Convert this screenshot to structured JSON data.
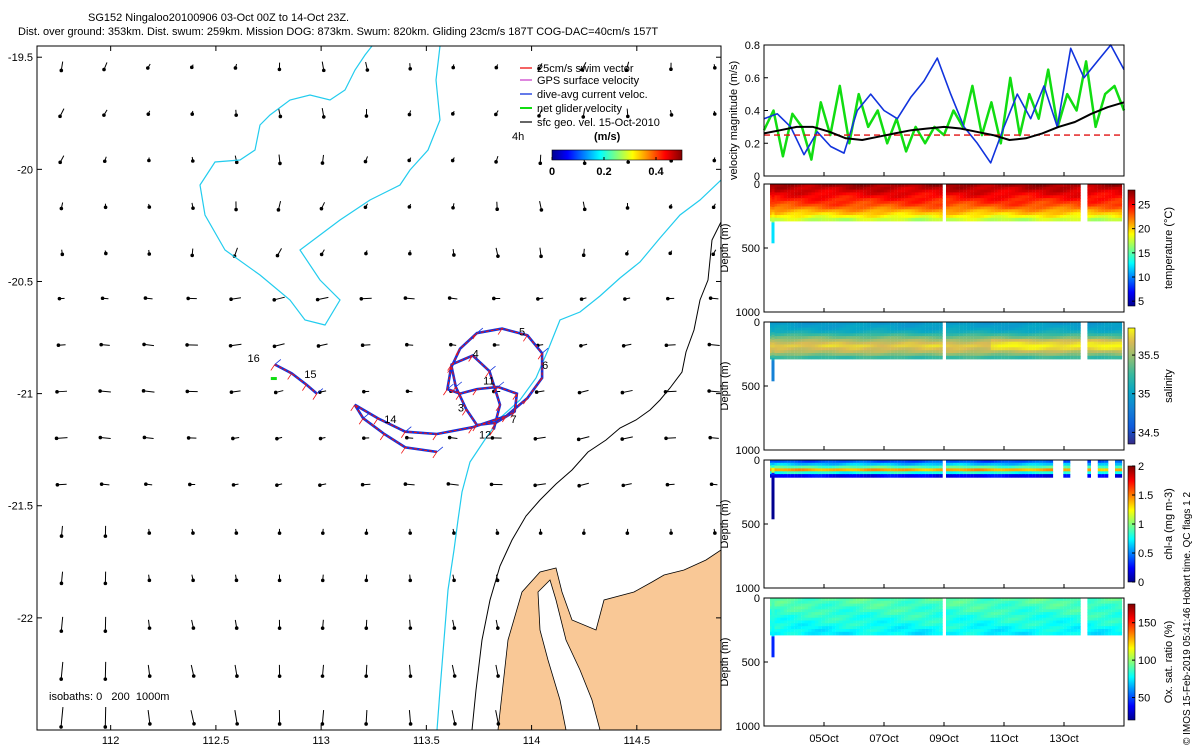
{
  "header": {
    "line1": "SG152 Ningaloo20100906 03-Oct 00Z to 14-Oct 23Z.",
    "line2": "Dist. over ground: 353km. Dist. swum: 259km. Mission DOG: 873km. Swum: 820km. Gliding 23cm/s 187T COG-DAC=40cm/s 157T"
  },
  "colors": {
    "land": "#f9c896",
    "isobath200": "#22ccee",
    "swim": "#ee1111",
    "gps": "#cc44cc",
    "dac": "#1133dd",
    "net": "#11dd11",
    "sfc": "#000000"
  },
  "chart_data": [
    {
      "type": "map",
      "name": "track-map",
      "xlabel": "",
      "ylabel": "",
      "xlim": [
        111.65,
        114.9
      ],
      "ylim": [
        -22.5,
        -19.45
      ],
      "xticks": [
        112,
        112.5,
        113,
        113.5,
        114,
        114.5
      ],
      "xtick_labels": [
        "112",
        "112.5",
        "113",
        "113.5",
        "114",
        "114.5"
      ],
      "yticks": [
        -19.5,
        -20,
        -20.5,
        -21,
        -21.5,
        -22
      ],
      "ytick_labels": [
        "-19.5",
        "-20",
        "-20.5",
        "-21",
        "-21.5",
        "-22"
      ],
      "legend": [
        "25cm/s swim vector",
        "GPS surface velocity",
        "dive-avg current veloc.",
        "net glider velocity",
        "sfc geo. vel. 15-Oct-2010"
      ],
      "legend_extra": "4h",
      "colorbar": {
        "label": "(m/s)",
        "ticks": [
          0,
          0.2,
          0.4
        ],
        "tick_labels": [
          "0",
          "0.2",
          "0.4"
        ],
        "range": [
          0,
          0.5
        ]
      },
      "isobaths_label": "isobaths: 0   200  1000m",
      "day_labels": [
        {
          "text": "16",
          "lon": 112.65,
          "lat": -20.86
        },
        {
          "text": "15",
          "lon": 112.92,
          "lat": -20.93
        },
        {
          "text": "4",
          "lon": 113.72,
          "lat": -20.84
        },
        {
          "text": "5",
          "lon": 113.94,
          "lat": -20.74
        },
        {
          "text": "6",
          "lon": 114.05,
          "lat": -20.89
        },
        {
          "text": "11",
          "lon": 113.77,
          "lat": -20.96
        },
        {
          "text": "3",
          "lon": 113.65,
          "lat": -21.08
        },
        {
          "text": "14",
          "lon": 113.3,
          "lat": -21.13
        },
        {
          "text": "7",
          "lon": 113.9,
          "lat": -21.13
        },
        {
          "text": "12",
          "lon": 113.75,
          "lat": -21.2
        }
      ],
      "track": [
        [
          113.55,
          -21.26
        ],
        [
          113.4,
          -21.24
        ],
        [
          113.3,
          -21.18
        ],
        [
          113.2,
          -21.11
        ],
        [
          113.16,
          -21.05
        ],
        [
          113.27,
          -21.11
        ],
        [
          113.4,
          -21.17
        ],
        [
          113.55,
          -21.18
        ],
        [
          113.72,
          -21.15
        ],
        [
          113.88,
          -21.1
        ],
        [
          113.98,
          -21.02
        ],
        [
          114.05,
          -20.93
        ],
        [
          114.05,
          -20.82
        ],
        [
          113.98,
          -20.74
        ],
        [
          113.86,
          -20.71
        ],
        [
          113.74,
          -20.73
        ],
        [
          113.66,
          -20.8
        ],
        [
          113.62,
          -20.88
        ],
        [
          113.64,
          -20.97
        ],
        [
          113.69,
          -21.07
        ],
        [
          113.74,
          -21.14
        ],
        [
          113.83,
          -21.13
        ],
        [
          113.92,
          -21.08
        ],
        [
          113.93,
          -21.0
        ],
        [
          113.84,
          -20.97
        ],
        [
          113.74,
          -20.98
        ],
        [
          113.66,
          -21.0
        ],
        [
          113.6,
          -20.98
        ],
        [
          113.62,
          -20.87
        ],
        [
          113.72,
          -20.83
        ],
        [
          113.8,
          -20.9
        ],
        [
          113.85,
          -21.05
        ],
        [
          113.82,
          -21.16
        ]
      ],
      "track2": [
        [
          112.78,
          -20.87
        ],
        [
          112.86,
          -20.91
        ],
        [
          112.93,
          -20.96
        ],
        [
          112.98,
          -21.0
        ]
      ]
    },
    {
      "type": "line",
      "name": "velocity",
      "ylabel": "velocity magnitude (m/s)",
      "ylim": [
        0,
        0.8
      ],
      "yticks": [
        0,
        0.2,
        0.4,
        0.6,
        0.8
      ],
      "ytick_labels": [
        "0",
        "0.2",
        "0.4",
        "0.6",
        "0.8"
      ],
      "red_dashed": 0.25,
      "black": [
        0.26,
        0.28,
        0.3,
        0.3,
        0.27,
        0.23,
        0.22,
        0.24,
        0.26,
        0.28,
        0.29,
        0.3,
        0.29,
        0.27,
        0.25,
        0.22,
        0.23,
        0.26,
        0.3,
        0.33,
        0.38,
        0.42,
        0.45
      ],
      "blue": [
        0.35,
        0.38,
        0.3,
        0.13,
        0.27,
        0.18,
        0.14,
        0.4,
        0.5,
        0.4,
        0.35,
        0.48,
        0.58,
        0.72,
        0.5,
        0.3,
        0.2,
        0.08,
        0.3,
        0.5,
        0.35,
        0.55,
        0.3,
        0.78,
        0.6,
        0.7,
        0.8,
        0.65
      ],
      "green": [
        0.28,
        0.4,
        0.12,
        0.38,
        0.3,
        0.1,
        0.45,
        0.25,
        0.55,
        0.2,
        0.5,
        0.3,
        0.4,
        0.2,
        0.35,
        0.15,
        0.3,
        0.2,
        0.3,
        0.25,
        0.4,
        0.3,
        0.55,
        0.25,
        0.45,
        0.2,
        0.6,
        0.25,
        0.5,
        0.35,
        0.65,
        0.3,
        0.5,
        0.4,
        0.7,
        0.3,
        0.5,
        0.55,
        0.4
      ]
    },
    {
      "type": "heatmap",
      "name": "temperature",
      "ylabel": "Depth (m)",
      "yticks": [
        0,
        500,
        1000
      ],
      "ytick_labels": [
        "0",
        "500",
        "1000"
      ],
      "clabel": "temperature (°C)",
      "cticks": [
        5,
        10,
        15,
        20,
        25
      ],
      "ctick_labels": [
        "5",
        "10",
        "15",
        "20",
        "25"
      ],
      "crange": [
        4,
        28
      ],
      "profile": [
        [
          0,
          27
        ],
        [
          80,
          25
        ],
        [
          160,
          23
        ],
        [
          240,
          19
        ],
        [
          270,
          17
        ]
      ]
    },
    {
      "type": "heatmap",
      "name": "salinity",
      "ylabel": "Depth (m)",
      "yticks": [
        0,
        500,
        1000
      ],
      "ytick_labels": [
        "0",
        "500",
        "1000"
      ],
      "clabel": "salinity",
      "cticks": [
        34.5,
        35,
        35.5
      ],
      "ctick_labels": [
        "34.5",
        "35",
        "35.5"
      ],
      "crange": [
        34.35,
        35.85
      ],
      "profile": [
        [
          0,
          34.95
        ],
        [
          60,
          35.05
        ],
        [
          110,
          35.4
        ],
        [
          170,
          35.75
        ],
        [
          230,
          35.55
        ],
        [
          280,
          35.1
        ]
      ]
    },
    {
      "type": "heatmap",
      "name": "chl-a",
      "ylabel": "Depth (m)",
      "yticks": [
        0,
        500,
        1000
      ],
      "ytick_labels": [
        "0",
        "500",
        "1000"
      ],
      "clabel": "chl-a (mg m-3)",
      "cticks": [
        0,
        0.5,
        1,
        1.5,
        2
      ],
      "ctick_labels": [
        "0",
        "0.5",
        "1",
        "1.5",
        "2"
      ],
      "crange": [
        0,
        2
      ],
      "profile": [
        [
          0,
          0.4
        ],
        [
          40,
          0.8
        ],
        [
          70,
          1.5
        ],
        [
          100,
          0.3
        ],
        [
          130,
          0.05
        ],
        [
          280,
          0.0
        ]
      ]
    },
    {
      "type": "heatmap",
      "name": "oxygen",
      "ylabel": "Depth (m)",
      "yticks": [
        0,
        500,
        1000
      ],
      "ytick_labels": [
        "0",
        "500",
        "1000"
      ],
      "clabel": "Ox. sat. ratio (%)",
      "cticks": [
        50,
        100,
        150
      ],
      "ctick_labels": [
        "50",
        "100",
        "150"
      ],
      "crange": [
        20,
        175
      ],
      "profile": [
        [
          0,
          90
        ],
        [
          100,
          85
        ],
        [
          200,
          80
        ],
        [
          280,
          75
        ]
      ],
      "xtick_labels": [
        "05Oct",
        "07Oct",
        "09Oct",
        "11Oct",
        "13Oct"
      ],
      "xticks": [
        5,
        7,
        9,
        11,
        13
      ],
      "xlim": [
        3,
        15
      ]
    }
  ],
  "side_note": "© IMOS 15-Feb-2019 05:41:46 Hobart time. QC flags 1  2"
}
